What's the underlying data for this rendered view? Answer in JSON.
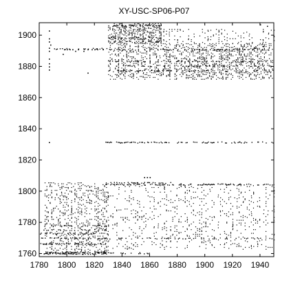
{
  "chart_data": {
    "type": "scatter",
    "title": "XY-USC-SP06-P07",
    "xlabel": "",
    "ylabel": "",
    "xlim": [
      1780,
      1950
    ],
    "ylim": [
      1758,
      1908
    ],
    "xticks": [
      1780,
      1800,
      1820,
      1840,
      1860,
      1880,
      1900,
      1920,
      1940
    ],
    "yticks": [
      1760,
      1780,
      1800,
      1820,
      1840,
      1860,
      1880,
      1900
    ],
    "grid": false,
    "legend": "none",
    "marker_color": "#000000",
    "band_series": [
      {
        "y": 1760.2,
        "x_start": 1783,
        "x_end": 1829,
        "density": 0.85
      },
      {
        "y": 1761.0,
        "x_start": 1783,
        "x_end": 1829,
        "density": 0.7
      },
      {
        "y": 1760.5,
        "x_start": 1830,
        "x_end": 1868,
        "density": 0.35
      },
      {
        "y": 1766.5,
        "x_start": 1781,
        "x_end": 1829,
        "density": 0.55
      },
      {
        "y": 1770.0,
        "x_start": 1780,
        "x_end": 1830,
        "density": 0.5
      },
      {
        "y": 1770.0,
        "x_start": 1830,
        "x_end": 1950,
        "density": 0.25
      },
      {
        "y": 1773.0,
        "x_start": 1780,
        "x_end": 1830,
        "density": 0.45
      },
      {
        "y": 1775.5,
        "x_start": 1783,
        "x_end": 1830,
        "density": 0.35
      },
      {
        "y": 1778.0,
        "x_start": 1783,
        "x_end": 1830,
        "density": 0.3
      },
      {
        "y": 1804.5,
        "x_start": 1828,
        "x_end": 1950,
        "density": 0.5
      },
      {
        "y": 1805.5,
        "x_start": 1828,
        "x_end": 1875,
        "density": 0.45
      },
      {
        "y": 1831.5,
        "x_start": 1828,
        "x_end": 1870,
        "density": 0.6
      },
      {
        "y": 1831.5,
        "x_start": 1870,
        "x_end": 1950,
        "density": 0.35
      },
      {
        "y": 1877.5,
        "x_start": 1830,
        "x_end": 1950,
        "density": 0.35
      },
      {
        "y": 1880.5,
        "x_start": 1830,
        "x_end": 1950,
        "density": 0.3
      },
      {
        "y": 1883.5,
        "x_start": 1830,
        "x_end": 1950,
        "density": 0.3
      },
      {
        "y": 1891.5,
        "x_start": 1788,
        "x_end": 1829,
        "density": 0.3
      },
      {
        "y": 1891.0,
        "x_start": 1830,
        "x_end": 1950,
        "density": 0.3
      },
      {
        "y": 1896.0,
        "x_start": 1830,
        "x_end": 1870,
        "density": 0.4
      },
      {
        "y": 1898.5,
        "x_start": 1830,
        "x_end": 1868,
        "density": 0.45
      },
      {
        "y": 1906.5,
        "x_start": 1830,
        "x_end": 1868,
        "density": 0.55
      }
    ],
    "column_series": [
      {
        "x_start": 1784,
        "x_end": 1830,
        "y_start": 1760,
        "y_end": 1806,
        "step_x": 1.2,
        "density": 0.22
      },
      {
        "x_start": 1830,
        "x_end": 1950,
        "y_start": 1763,
        "y_end": 1805,
        "step_x": 1.5,
        "density": 0.12
      },
      {
        "x_start": 1830,
        "x_end": 1950,
        "y_start": 1872,
        "y_end": 1895,
        "step_x": 1.2,
        "density": 0.3
      },
      {
        "x_start": 1830,
        "x_end": 1868,
        "y_start": 1895,
        "y_end": 1908,
        "step_x": 1.0,
        "density": 0.35
      },
      {
        "x_start": 1868,
        "x_end": 1950,
        "y_start": 1895,
        "y_end": 1904,
        "step_x": 2.0,
        "density": 0.15
      }
    ],
    "sparse_points": [
      [
        1787,
        1831.5
      ],
      [
        1787,
        1878
      ],
      [
        1787,
        1880
      ],
      [
        1787,
        1882
      ],
      [
        1787,
        1885
      ],
      [
        1787,
        1890
      ],
      [
        1787,
        1892
      ],
      [
        1787,
        1896
      ],
      [
        1787,
        1898
      ],
      [
        1787,
        1903
      ],
      [
        1788,
        1894
      ],
      [
        1808,
        1891
      ],
      [
        1812,
        1890
      ],
      [
        1815,
        1891
      ],
      [
        1815,
        1876
      ],
      [
        1797,
        1888
      ],
      [
        1806,
        1890
      ],
      [
        1798,
        1891
      ],
      [
        1800,
        1891
      ],
      [
        1802,
        1891
      ],
      [
        1804,
        1891
      ],
      [
        1856,
        1809
      ],
      [
        1858,
        1809
      ],
      [
        1860,
        1809
      ],
      [
        1818,
        1891
      ],
      [
        1820,
        1891
      ],
      [
        1822,
        1891
      ],
      [
        1826,
        1891
      ],
      [
        1940,
        1907
      ],
      [
        1945,
        1906
      ],
      [
        1942,
        1893
      ],
      [
        1931,
        1891
      ],
      [
        1936,
        1892
      ]
    ]
  }
}
